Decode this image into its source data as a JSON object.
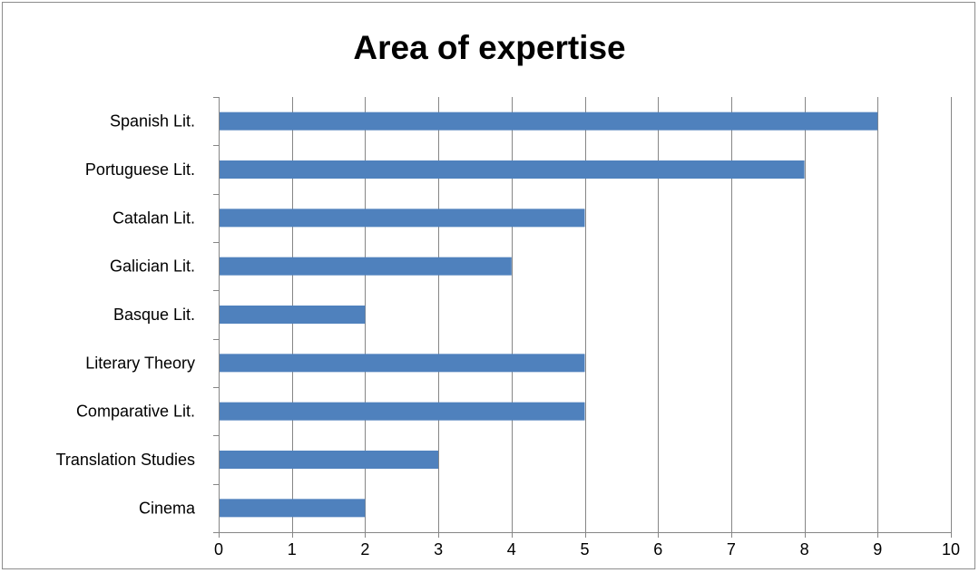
{
  "chart_data": {
    "type": "bar",
    "orientation": "horizontal",
    "title": "Area of expertise",
    "xlabel": "",
    "ylabel": "",
    "categories": [
      "Spanish Lit.",
      "Portuguese Lit.",
      "Catalan Lit.",
      "Galician Lit.",
      "Basque Lit.",
      "Literary Theory",
      "Comparative Lit.",
      "Translation Studies",
      "Cinema"
    ],
    "values": [
      9,
      8,
      5,
      4,
      2,
      5,
      5,
      3,
      2
    ],
    "xlim": [
      0,
      10
    ],
    "xticks": [
      "0",
      "1",
      "2",
      "3",
      "4",
      "5",
      "6",
      "7",
      "8",
      "9",
      "10"
    ],
    "grid": "vertical",
    "legend": "none",
    "bar_color": "#4F81BD",
    "grid_color": "#868686"
  }
}
